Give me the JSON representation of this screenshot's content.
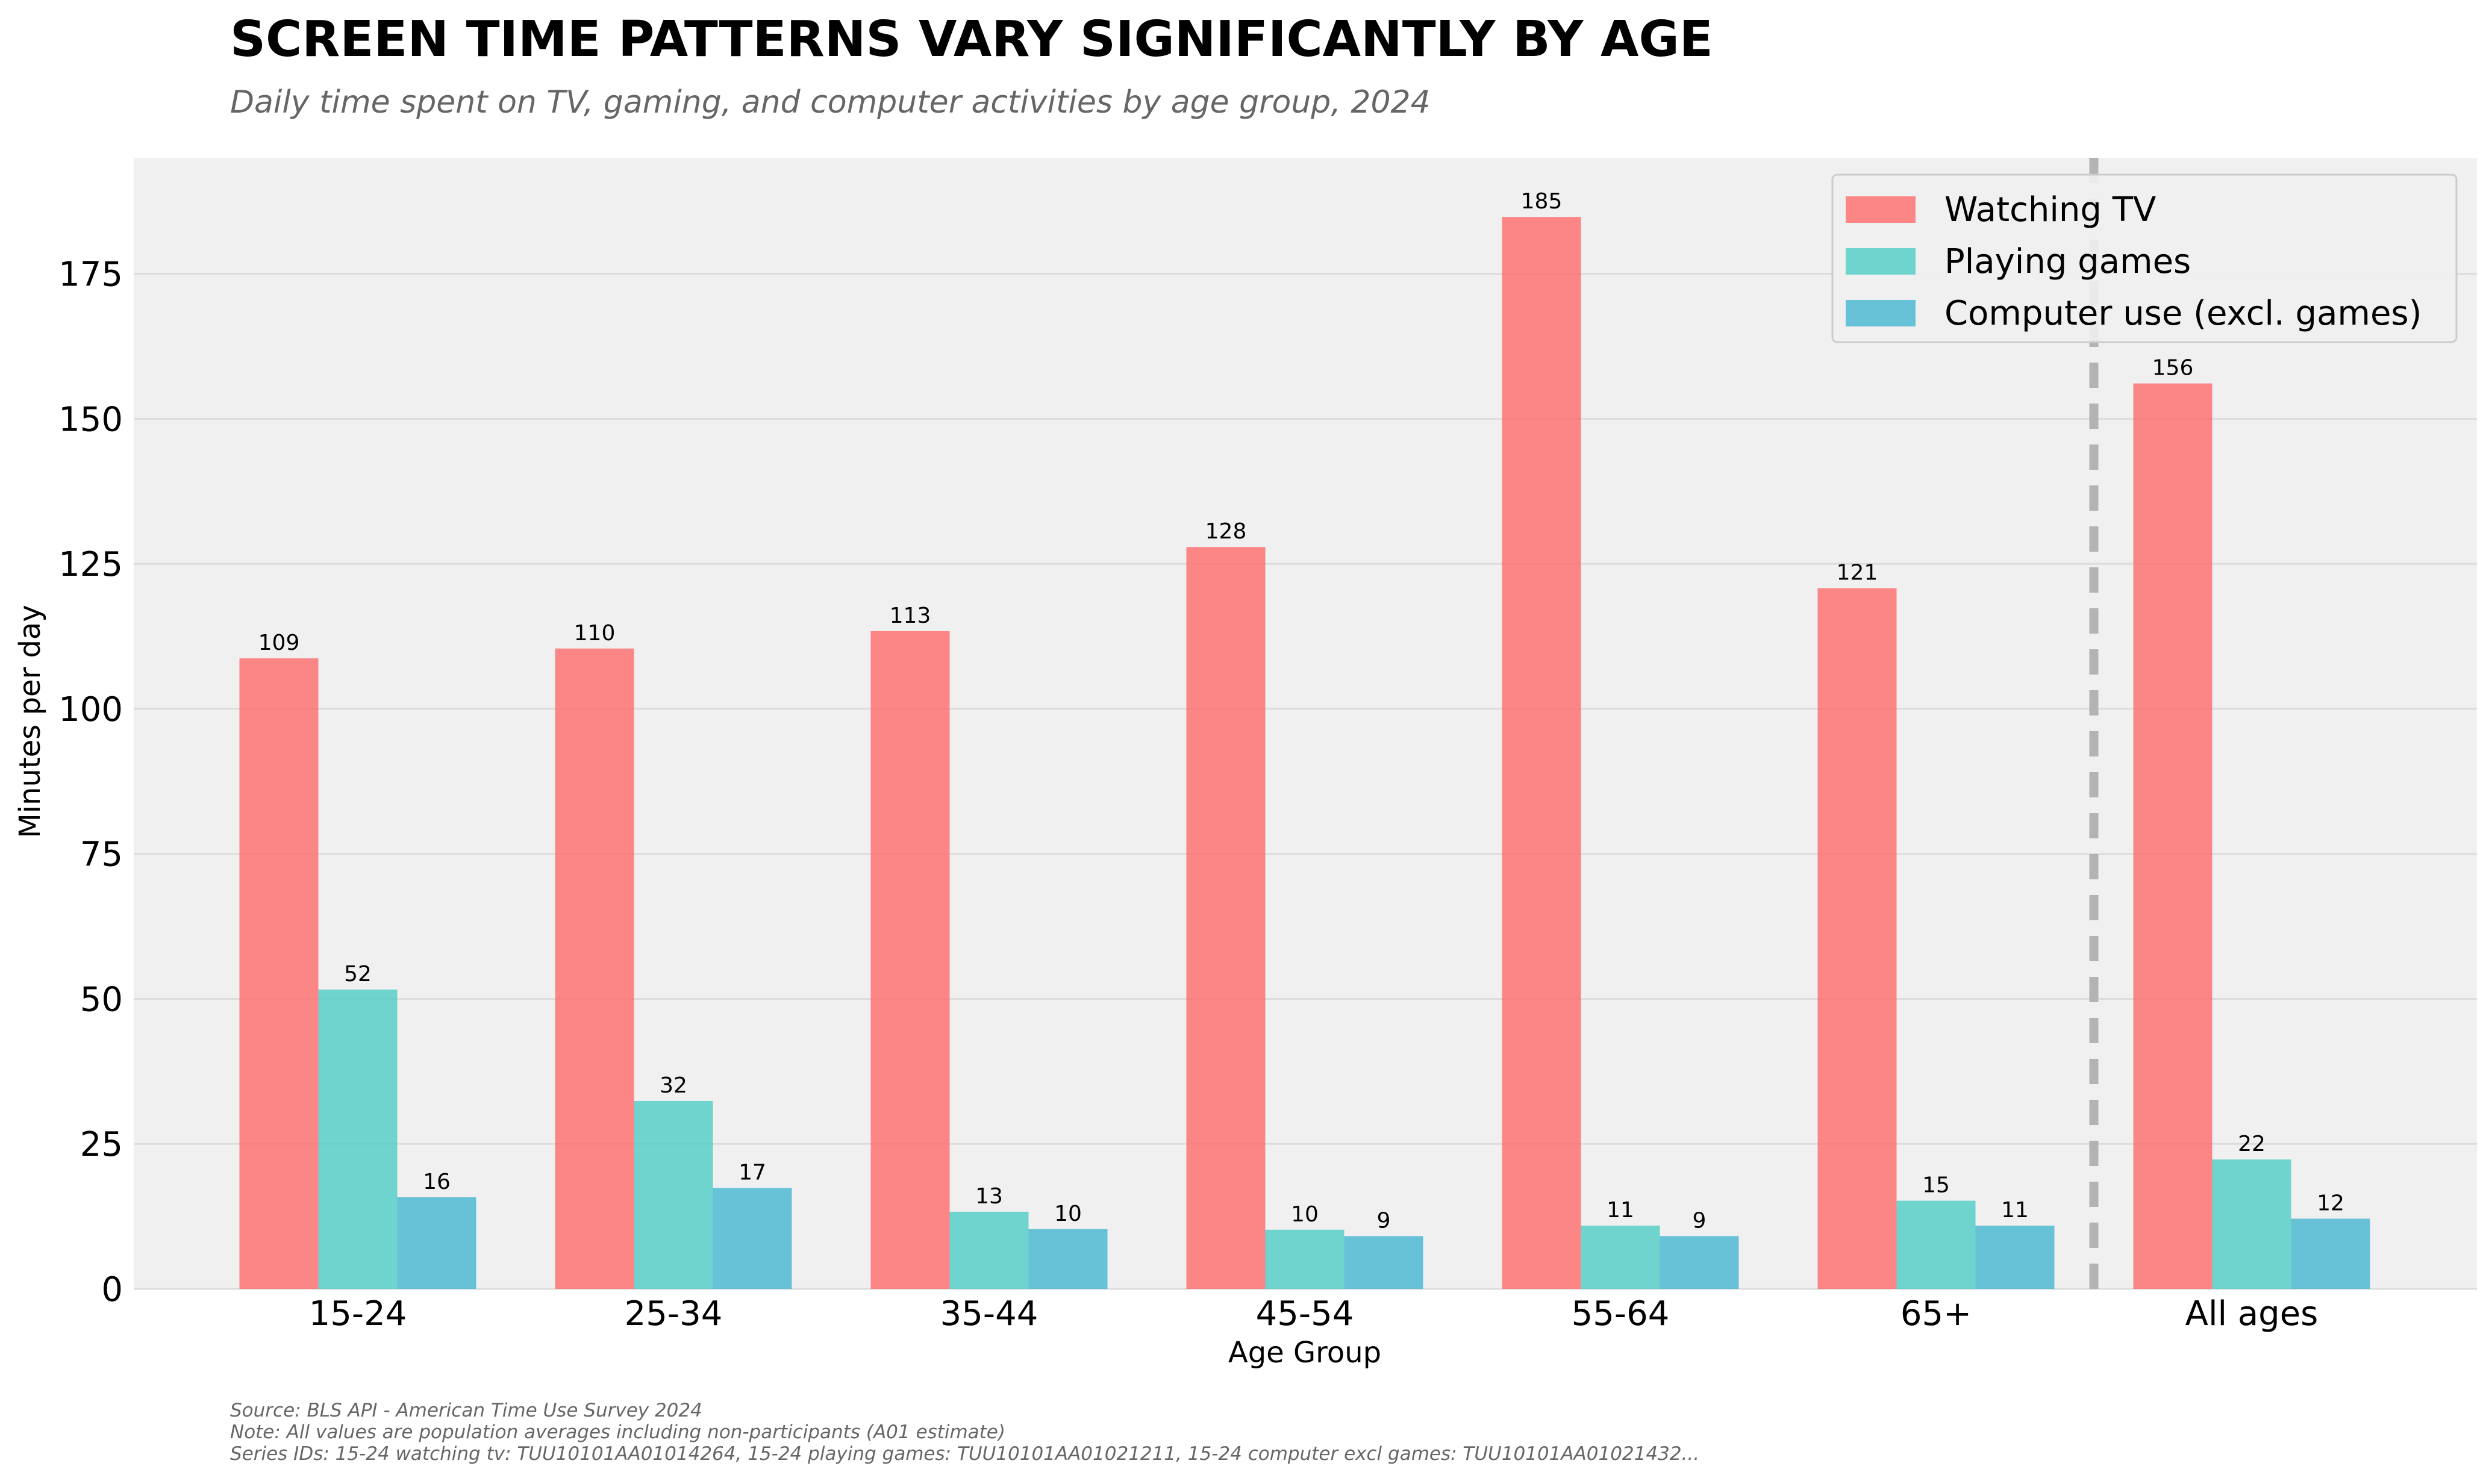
{
  "chart_data": {
    "type": "bar",
    "title": "SCREEN TIME PATTERNS VARY SIGNIFICANTLY BY AGE",
    "subtitle": "Daily time spent on TV, gaming, and computer activities by age group, 2024",
    "xlabel": "Age Group",
    "ylabel": "Minutes per day",
    "categories": [
      "15-24",
      "25-34",
      "35-44",
      "45-54",
      "55-64",
      "65+",
      "All ages"
    ],
    "series": [
      {
        "name": "Watching TV",
        "color": "#FF6B6B",
        "values": [
          108.7,
          110.4,
          113.4,
          127.9,
          184.8,
          120.8,
          156.1
        ],
        "labels": [
          "109",
          "110",
          "113",
          "128",
          "185",
          "121",
          "156"
        ]
      },
      {
        "name": "Playing games",
        "color": "#4ECDC4",
        "values": [
          51.6,
          32.4,
          13.3,
          10.2,
          10.9,
          15.2,
          22.3
        ],
        "labels": [
          "52",
          "32",
          "13",
          "10",
          "11",
          "15",
          "22"
        ]
      },
      {
        "name": "Computer use (excl. games)",
        "color": "#45B7D1",
        "values": [
          15.8,
          17.4,
          10.3,
          9.1,
          9.1,
          10.9,
          12.1
        ],
        "labels": [
          "16",
          "17",
          "10",
          "9",
          "9",
          "11",
          "12"
        ]
      }
    ],
    "ylim": [
      0,
      195
    ],
    "yticks": [
      0,
      25,
      50,
      75,
      100,
      125,
      150,
      175
    ],
    "ytick_labels": [
      "0",
      "25",
      "50",
      "75",
      "100",
      "125",
      "150",
      "175"
    ],
    "grid": true,
    "legend_position": "top-right",
    "separator_before_category": "All ages",
    "background_color": "#F0F0F0"
  },
  "footnotes": {
    "source": "Source: BLS API - American Time Use Survey 2024",
    "note": "Note: All values are population averages including non-participants (A01 estimate)",
    "series_ids": "Series IDs: 15-24 watching tv: TUU10101AA01014264, 15-24 playing games: TUU10101AA01021211, 15-24 computer excl games: TUU10101AA01021432..."
  }
}
